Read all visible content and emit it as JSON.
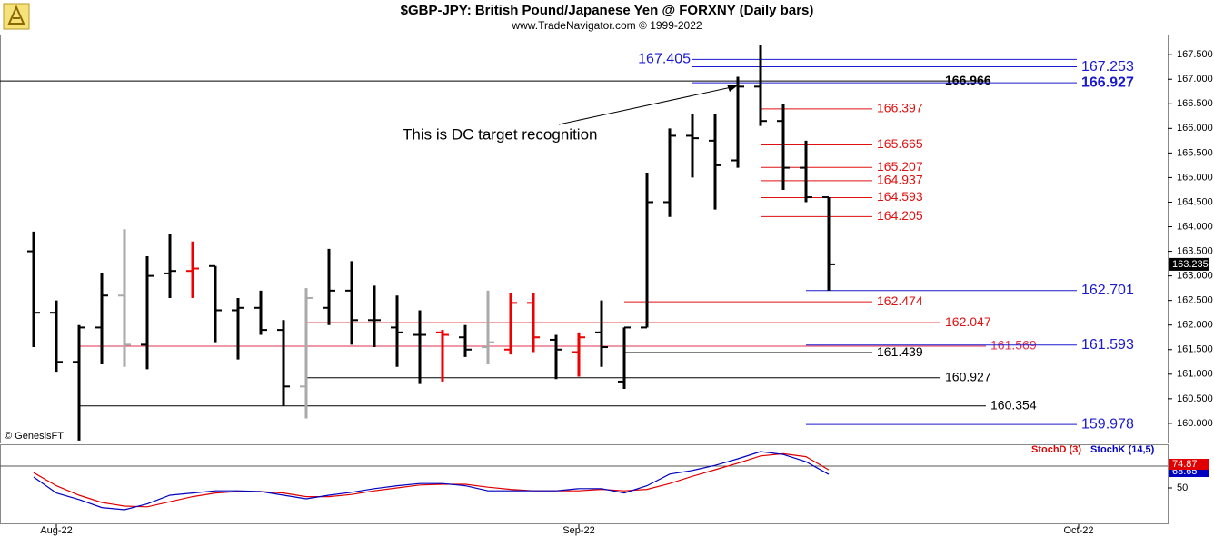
{
  "chart_data": {
    "type": "ohlc",
    "title": "$GBP-JPY:  British Pound/Japanese Yen @ FORXNY  (Daily bars)",
    "subtitle": "www.TradeNavigator.com © 1999-2022",
    "copyright": "© GenesisFT",
    "annotation": "This is DC target recognition",
    "xlim": [
      -1,
      50
    ],
    "xticks": [
      {
        "value": 1,
        "label": "Aug-22"
      },
      {
        "value": 24,
        "label": "Sep-22"
      },
      {
        "value": 46,
        "label": "Oct-22"
      }
    ],
    "ylim": [
      159.61,
      167.91
    ],
    "yticks": [
      {
        "value": 160,
        "label": "160.000"
      },
      {
        "value": 160.5,
        "label": "160.500"
      },
      {
        "value": 161,
        "label": "161.000"
      },
      {
        "value": 161.5,
        "label": "161.500"
      },
      {
        "value": 162,
        "label": "162.000"
      },
      {
        "value": 162.5,
        "label": "162.500"
      },
      {
        "value": 163,
        "label": "163.000"
      },
      {
        "value": 163.5,
        "label": "163.500"
      },
      {
        "value": 164,
        "label": "164.000"
      },
      {
        "value": 164.5,
        "label": "164.500"
      },
      {
        "value": 165,
        "label": "165.000"
      },
      {
        "value": 165.5,
        "label": "165.500"
      },
      {
        "value": 166,
        "label": "166.000"
      },
      {
        "value": 166.5,
        "label": "166.500"
      },
      {
        "value": 167,
        "label": "167.000"
      },
      {
        "value": 167.5,
        "label": "167.500"
      }
    ],
    "open": [
      163.5,
      162.25,
      161.25,
      161.95,
      162.6,
      161.6,
      163.05,
      163.1,
      163.2,
      162.3,
      162.35,
      161.9,
      160.75,
      162.35,
      162.7,
      162.1,
      161.95,
      161.8,
      161.85,
      161.75,
      161.55,
      161.5,
      162.45,
      161.7,
      161.45,
      161.85,
      160.85,
      161.95,
      164.5,
      165.85,
      165.75,
      165.35,
      166.85,
      166.15,
      165.2,
      164.6
    ],
    "high": [
      163.9,
      162.5,
      162.0,
      163.05,
      163.95,
      163.4,
      163.85,
      163.7,
      163.2,
      162.55,
      162.7,
      162.1,
      162.75,
      163.55,
      163.3,
      162.8,
      162.6,
      162.3,
      161.9,
      162.0,
      162.7,
      162.65,
      162.65,
      161.8,
      161.85,
      162.5,
      161.95,
      165.1,
      166.0,
      166.3,
      166.3,
      167.05,
      167.7,
      166.5,
      165.75,
      164.6
    ],
    "low": [
      161.55,
      161.05,
      159.65,
      161.2,
      161.15,
      161.1,
      162.55,
      162.55,
      161.65,
      161.3,
      161.8,
      160.35,
      160.1,
      162.0,
      161.6,
      161.55,
      161.15,
      160.8,
      160.85,
      161.35,
      161.2,
      161.4,
      161.45,
      160.9,
      160.95,
      161.15,
      160.7,
      161.95,
      164.2,
      165.0,
      164.35,
      165.2,
      166.05,
      164.75,
      164.5,
      162.7
    ],
    "close": [
      162.25,
      161.25,
      161.95,
      162.6,
      161.6,
      163.0,
      163.1,
      163.15,
      162.3,
      162.35,
      161.9,
      160.75,
      162.55,
      162.7,
      162.1,
      162.1,
      161.85,
      161.8,
      161.8,
      161.5,
      161.65,
      162.45,
      161.75,
      161.5,
      161.75,
      161.55,
      161.95,
      164.5,
      165.85,
      165.8,
      165.25,
      166.85,
      166.15,
      165.2,
      164.6,
      163.235
    ],
    "bar_colors": [
      "#000",
      "#000",
      "#000",
      "#000",
      "#aaa",
      "#000",
      "#000",
      "#e00",
      "#000",
      "#000",
      "#000",
      "#000",
      "#aaa",
      "#000",
      "#000",
      "#000",
      "#000",
      "#000",
      "#e00",
      "#000",
      "#aaa",
      "#e00",
      "#e00",
      "#000",
      "#e00",
      "#000",
      "#000",
      "#000",
      "#000",
      "#000",
      "#000",
      "#000",
      "#000",
      "#000",
      "#000",
      "#000"
    ],
    "levels": [
      {
        "value": 167.405,
        "color": "#1a1ad0"
      },
      {
        "value": 167.253,
        "color": "#1a1ad0"
      },
      {
        "value": 166.966,
        "color": "#000"
      },
      {
        "value": 166.927,
        "color": "#1a1ad0"
      },
      {
        "value": 166.397,
        "color": "#e01010"
      },
      {
        "value": 165.665,
        "color": "#e01010"
      },
      {
        "value": 165.207,
        "color": "#e01010"
      },
      {
        "value": 164.937,
        "color": "#e01010"
      },
      {
        "value": 164.593,
        "color": "#e01010"
      },
      {
        "value": 164.205,
        "color": "#e01010"
      },
      {
        "value": 162.701,
        "color": "#1a1ad0"
      },
      {
        "value": 162.474,
        "color": "#e01010"
      },
      {
        "value": 162.047,
        "color": "#e01010"
      },
      {
        "value": 161.569,
        "color": "#e03050"
      },
      {
        "value": 161.593,
        "color": "#1a1ad0"
      },
      {
        "value": 161.439,
        "color": "#000"
      },
      {
        "value": 160.927,
        "color": "#000"
      },
      {
        "value": 160.354,
        "color": "#000"
      },
      {
        "value": 159.978,
        "color": "#1a1ad0"
      }
    ],
    "stochastic": {
      "ylim": [
        0,
        100
      ],
      "yticks": [
        50
      ],
      "series": [
        {
          "name": "StochD (3)",
          "color": "#e00000",
          "values": [
            71,
            53,
            40,
            30,
            25,
            24,
            31,
            38,
            43,
            45,
            45,
            43,
            38,
            38,
            41,
            46,
            50,
            54,
            55,
            55,
            51,
            48,
            46,
            46,
            46,
            48,
            46,
            48,
            56,
            66,
            75,
            84,
            94,
            97,
            93,
            74.87
          ]
        },
        {
          "name": "StochK (14,5)",
          "color": "#0000c0",
          "values": [
            65,
            43,
            34,
            23,
            20,
            28,
            40,
            43,
            46,
            46,
            45,
            40,
            35,
            40,
            44,
            49,
            53,
            56,
            56,
            53,
            46,
            46,
            46,
            46,
            49,
            49,
            43,
            53,
            69,
            74,
            81,
            90,
            100,
            96,
            86,
            68.65
          ]
        }
      ]
    }
  }
}
